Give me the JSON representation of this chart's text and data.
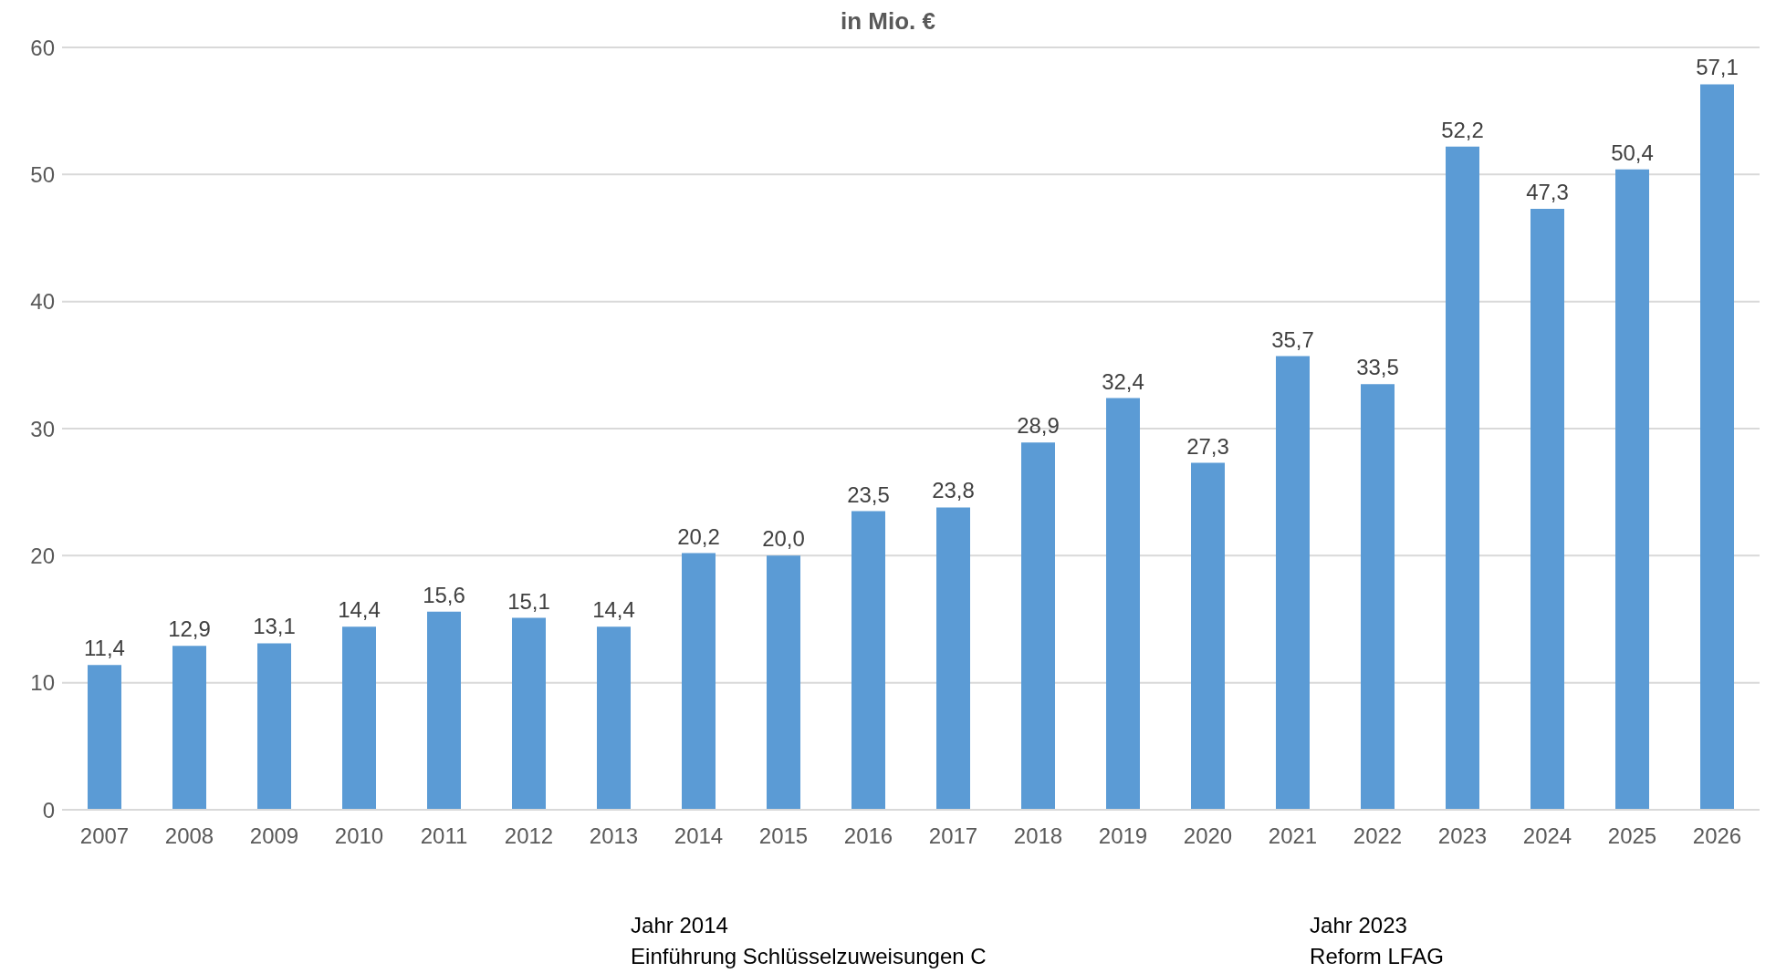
{
  "chart_data": {
    "type": "bar",
    "title": "in Mio. €",
    "categories": [
      "2007",
      "2008",
      "2009",
      "2010",
      "2011",
      "2012",
      "2013",
      "2014",
      "2015",
      "2016",
      "2017",
      "2018",
      "2019",
      "2020",
      "2021",
      "2022",
      "2023",
      "2024",
      "2025",
      "2026"
    ],
    "values": [
      11.4,
      12.9,
      13.1,
      14.4,
      15.6,
      15.1,
      14.4,
      20.2,
      20.0,
      23.5,
      23.8,
      28.9,
      32.4,
      27.3,
      35.7,
      33.5,
      52.2,
      47.3,
      50.4,
      57.1
    ],
    "value_labels": [
      "11,4",
      "12,9",
      "13,1",
      "14,4",
      "15,6",
      "15,1",
      "14,4",
      "20,2",
      "20,0",
      "23,5",
      "23,8",
      "28,9",
      "32,4",
      "27,3",
      "35,7",
      "33,5",
      "52,2",
      "47,3",
      "50,4",
      "57,1"
    ],
    "color": "#5b9bd5",
    "ylim": [
      0,
      60
    ],
    "yticks": [
      0,
      10,
      20,
      30,
      40,
      50,
      60
    ],
    "grid": "y",
    "legend": false,
    "annotations": [
      "Jahr 2014\nEinführung Schlüsselzuweisungen C",
      "Jahr 2023\nReform LFAG"
    ]
  }
}
